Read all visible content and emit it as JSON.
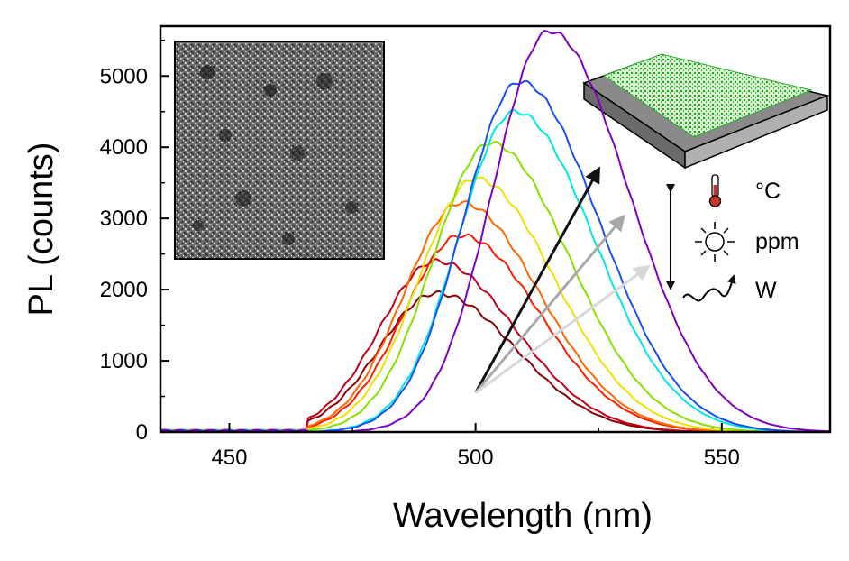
{
  "chart_data": {
    "type": "line",
    "title": "",
    "xlabel": "Wavelength (nm)",
    "ylabel": "PL (counts)",
    "xlim": [
      436,
      572
    ],
    "ylim": [
      0,
      5700
    ],
    "x_ticks": [
      450,
      500,
      550
    ],
    "x_tick_labels": [
      "450",
      "500",
      "550"
    ],
    "y_ticks": [
      0,
      1000,
      2000,
      3000,
      4000,
      5000
    ],
    "y_tick_labels": [
      "0",
      "1000",
      "2000",
      "3000",
      "4000",
      "5000"
    ],
    "grid": false,
    "legend": "none",
    "series": [
      {
        "color": "#8b0000",
        "peak": {
          "x": 492,
          "y": 1950
        }
      },
      {
        "color": "#c0001a",
        "peak": {
          "x": 492,
          "y": 2400
        }
      },
      {
        "color": "#ff1a00",
        "peak": {
          "x": 497,
          "y": 2760
        }
      },
      {
        "color": "#ff6600",
        "peak": {
          "x": 497,
          "y": 3220
        }
      },
      {
        "color": "#f0e000",
        "peak": {
          "x": 500,
          "y": 3560
        }
      },
      {
        "color": "#88e000",
        "peak": {
          "x": 503,
          "y": 4060
        }
      },
      {
        "color": "#00e8e0",
        "peak": {
          "x": 508,
          "y": 4500
        }
      },
      {
        "color": "#1a4ff0",
        "peak": {
          "x": 509,
          "y": 4920
        }
      },
      {
        "color": "#8000c0",
        "peak": {
          "x": 515,
          "y": 5630
        }
      }
    ],
    "annotations": {
      "arrows": [
        {
          "color": "#000000",
          "from": [
            500,
            550
          ],
          "to": [
            525,
            3690
          ]
        },
        {
          "color": "#a8a8a8",
          "from": [
            500,
            550
          ],
          "to": [
            530,
            3020
          ]
        },
        {
          "color": "#d8d8d8",
          "from": [
            500,
            550
          ],
          "to": [
            535,
            2320
          ]
        }
      ],
      "legend_labels": [
        "°C",
        "ppm",
        "W"
      ],
      "insets": [
        "tem-micrograph",
        "film-on-substrate-schematic"
      ]
    }
  }
}
